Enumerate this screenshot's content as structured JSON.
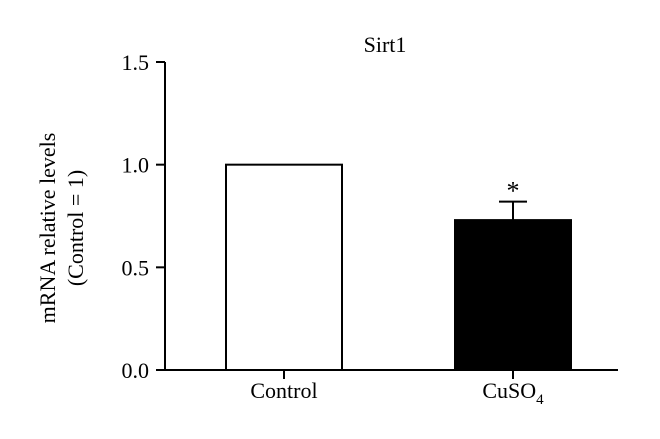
{
  "chart_data": {
    "type": "bar",
    "title": "Sirt1",
    "ylabel_line1": "mRNA relative levels",
    "ylabel_line2": "(Control = 1)",
    "ylim": [
      0,
      1.5
    ],
    "yticks": [
      "0.0",
      "0.5",
      "1.0",
      "1.5"
    ],
    "ytick_values": [
      0,
      0.5,
      1.0,
      1.5
    ],
    "categories": [
      {
        "label": "Control",
        "sub": ""
      },
      {
        "label": "CuSO",
        "sub": "4"
      }
    ],
    "values": [
      1.0,
      0.73
    ],
    "errors": [
      0,
      0.09
    ],
    "fills": [
      "#ffffff",
      "#000000"
    ],
    "significance": [
      "",
      "*"
    ],
    "grid": false
  }
}
